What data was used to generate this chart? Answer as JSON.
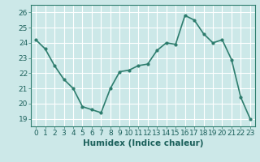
{
  "x": [
    0,
    1,
    2,
    3,
    4,
    5,
    6,
    7,
    8,
    9,
    10,
    11,
    12,
    13,
    14,
    15,
    16,
    17,
    18,
    19,
    20,
    21,
    22,
    23
  ],
  "y": [
    24.2,
    23.6,
    22.5,
    21.6,
    21.0,
    19.8,
    19.6,
    19.4,
    21.0,
    22.1,
    22.2,
    22.5,
    22.6,
    23.5,
    24.0,
    23.9,
    25.8,
    25.5,
    24.6,
    24.0,
    24.2,
    22.9,
    20.4,
    19.0
  ],
  "line_color": "#2e7d6e",
  "marker": "o",
  "marker_size": 2.0,
  "line_width": 1.2,
  "bg_color": "#cce8e8",
  "grid_color": "#ffffff",
  "xlabel": "Humidex (Indice chaleur)",
  "xlabel_fontsize": 7.5,
  "ylim": [
    18.5,
    26.5
  ],
  "xlim": [
    -0.5,
    23.5
  ],
  "yticks": [
    19,
    20,
    21,
    22,
    23,
    24,
    25,
    26
  ],
  "xticks": [
    0,
    1,
    2,
    3,
    4,
    5,
    6,
    7,
    8,
    9,
    10,
    11,
    12,
    13,
    14,
    15,
    16,
    17,
    18,
    19,
    20,
    21,
    22,
    23
  ],
  "tick_fontsize": 6.5,
  "figsize": [
    3.2,
    2.0
  ],
  "dpi": 100
}
